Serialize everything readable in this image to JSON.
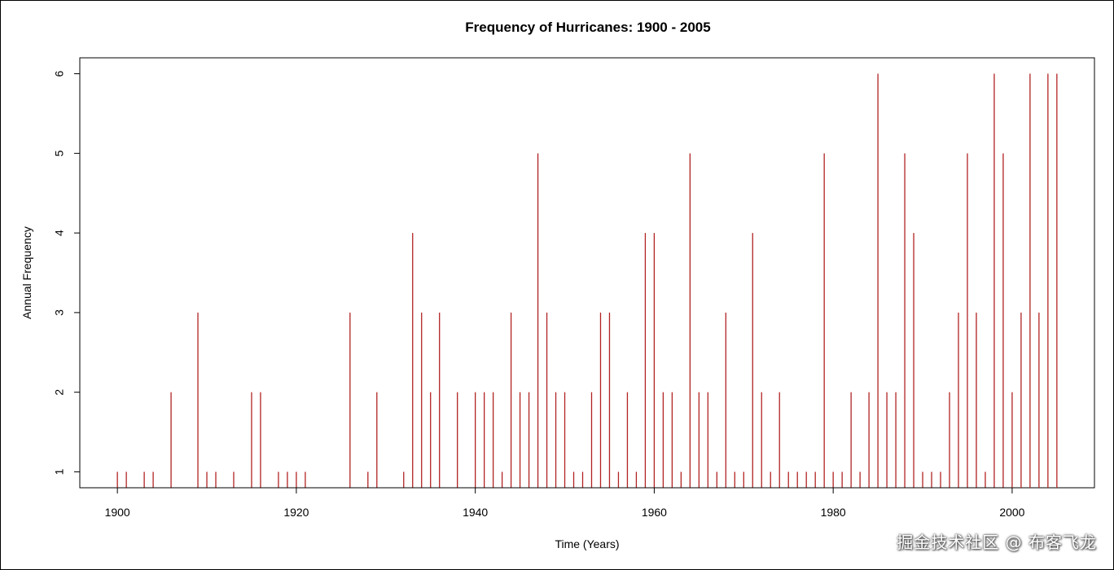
{
  "chart_data": {
    "type": "bar",
    "style": "histogram-spikes",
    "title": "Frequency of Hurricanes: 1900 - 2005",
    "xlabel": "Time (Years)",
    "ylabel": "Annual Frequency",
    "xlim": [
      1895.8,
      2009.2
    ],
    "ylim": [
      0.8,
      6.2
    ],
    "xticks": [
      1900,
      1920,
      1940,
      1960,
      1980,
      2000
    ],
    "yticks": [
      1,
      2,
      3,
      4,
      5,
      6
    ],
    "color": "#b22222",
    "series": [
      {
        "name": "Annual Frequency",
        "x": [
          1900,
          1901,
          1903,
          1904,
          1906,
          1909,
          1910,
          1911,
          1913,
          1915,
          1916,
          1918,
          1919,
          1920,
          1921,
          1926,
          1928,
          1929,
          1932,
          1933,
          1934,
          1935,
          1936,
          1938,
          1940,
          1941,
          1942,
          1943,
          1944,
          1945,
          1946,
          1947,
          1948,
          1949,
          1950,
          1951,
          1952,
          1953,
          1954,
          1955,
          1956,
          1957,
          1958,
          1959,
          1960,
          1961,
          1962,
          1963,
          1964,
          1965,
          1966,
          1967,
          1968,
          1969,
          1970,
          1971,
          1972,
          1973,
          1974,
          1975,
          1976,
          1977,
          1978,
          1979,
          1980,
          1981,
          1982,
          1983,
          1984,
          1985,
          1986,
          1987,
          1988,
          1989,
          1990,
          1991,
          1992,
          1993,
          1994,
          1995,
          1996,
          1997,
          1998,
          1999,
          2000,
          2001,
          2002,
          2003,
          2004,
          2005
        ],
        "values": [
          1,
          1,
          1,
          1,
          2,
          3,
          1,
          1,
          1,
          2,
          2,
          1,
          1,
          1,
          1,
          3,
          1,
          2,
          1,
          4,
          3,
          2,
          3,
          2,
          2,
          2,
          2,
          1,
          3,
          2,
          2,
          5,
          3,
          2,
          2,
          1,
          1,
          2,
          3,
          3,
          1,
          2,
          1,
          4,
          4,
          2,
          2,
          1,
          5,
          2,
          2,
          1,
          3,
          1,
          1,
          4,
          2,
          1,
          2,
          1,
          1,
          1,
          1,
          5,
          1,
          1,
          2,
          1,
          2,
          6,
          2,
          2,
          5,
          4,
          1,
          1,
          1,
          2,
          3,
          5,
          3,
          1,
          6,
          5,
          2,
          3,
          6,
          3,
          6,
          6
        ]
      }
    ]
  },
  "watermark": "掘金技术社区 @ 布客飞龙"
}
